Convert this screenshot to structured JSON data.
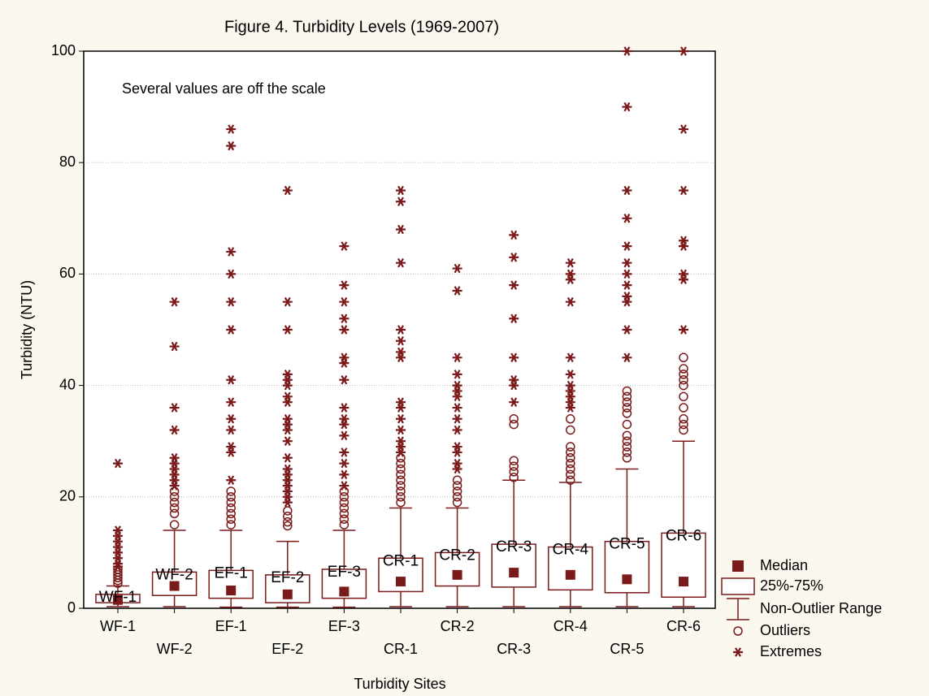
{
  "chart_data": {
    "type": "box",
    "title": "Figure 4.  Turbidity Levels (1969-2007)",
    "annotation": "Several values are off the scale",
    "xlabel": "Turbidity Sites",
    "ylabel": "Turbidity (NTU)",
    "color": "#7b1a1a",
    "annotation_color": "#1a1aff",
    "categories": [
      "WF-1",
      "WF-2",
      "EF-1",
      "EF-2",
      "EF-3",
      "CR-1",
      "CR-2",
      "CR-3",
      "CR-4",
      "CR-5",
      "CR-6"
    ],
    "ylim": [
      0,
      100
    ],
    "yticks": [
      0,
      20,
      40,
      60,
      80,
      100
    ],
    "grid": true,
    "legend": [
      "Median",
      "25%-75%",
      "Non-Outlier Range",
      "Outliers",
      "Extremes"
    ],
    "boxes": [
      {
        "median": 1.5,
        "q1": 1,
        "q3": 2.5,
        "whisker_low": 0.3,
        "whisker_high": 4,
        "outliers": [
          4.5,
          5,
          5.5,
          6,
          6.5,
          7
        ],
        "extremes": [
          7.5,
          8,
          9,
          10,
          11,
          12,
          13,
          14,
          26
        ]
      },
      {
        "median": 4,
        "q1": 2.3,
        "q3": 6.5,
        "whisker_low": 0.3,
        "whisker_high": 14,
        "outliers": [
          15,
          17,
          18,
          19,
          20,
          21
        ],
        "extremes": [
          22,
          23,
          24,
          25,
          26,
          27,
          32,
          36,
          47,
          55
        ]
      },
      {
        "median": 3.2,
        "q1": 1.8,
        "q3": 6.8,
        "whisker_low": 0.2,
        "whisker_high": 14,
        "outliers": [
          15,
          16,
          17,
          18,
          19,
          20,
          21
        ],
        "extremes": [
          23,
          28,
          29,
          32,
          34,
          37,
          41,
          50,
          55,
          60,
          64,
          83,
          86
        ]
      },
      {
        "median": 2.5,
        "q1": 1,
        "q3": 6,
        "whisker_low": 0.2,
        "whisker_high": 12,
        "outliers": [
          14.8,
          15.5,
          16.5,
          17.5
        ],
        "extremes": [
          19,
          20,
          21,
          22,
          23,
          24,
          25,
          27,
          30,
          32,
          33,
          34,
          37,
          38,
          40,
          41,
          42,
          50,
          55,
          75
        ]
      },
      {
        "median": 3,
        "q1": 1.8,
        "q3": 7,
        "whisker_low": 0.2,
        "whisker_high": 14,
        "outliers": [
          15,
          16,
          17,
          18,
          19,
          20,
          21
        ],
        "extremes": [
          22,
          24,
          26,
          28,
          31,
          33,
          34,
          36,
          41,
          44,
          45,
          50,
          52,
          55,
          58,
          65
        ]
      },
      {
        "median": 4.8,
        "q1": 3,
        "q3": 9,
        "whisker_low": 0.3,
        "whisker_high": 18,
        "outliers": [
          19,
          20,
          21,
          22,
          23,
          24,
          25,
          26,
          27
        ],
        "extremes": [
          28,
          29,
          30,
          32,
          34,
          36,
          37,
          45,
          46,
          48,
          50,
          62,
          68,
          73,
          75
        ]
      },
      {
        "median": 6,
        "q1": 4,
        "q3": 10,
        "whisker_low": 0.3,
        "whisker_high": 18,
        "outliers": [
          19,
          20,
          21,
          22,
          23
        ],
        "extremes": [
          25,
          26,
          28,
          29,
          32,
          34,
          36,
          38,
          39,
          40,
          42,
          45,
          57,
          61
        ]
      },
      {
        "median": 6.4,
        "q1": 3.8,
        "q3": 11.5,
        "whisker_low": 0.3,
        "whisker_high": 23,
        "outliers": [
          23.5,
          24.5,
          25.5,
          26.5,
          33,
          34
        ],
        "extremes": [
          37,
          40,
          41,
          45,
          52,
          58,
          63,
          67
        ]
      },
      {
        "median": 6,
        "q1": 3.3,
        "q3": 11,
        "whisker_low": 0.3,
        "whisker_high": 22.6,
        "outliers": [
          23,
          24,
          25,
          26,
          27,
          28,
          29,
          32,
          34
        ],
        "extremes": [
          36,
          37,
          38,
          39,
          40,
          42,
          45,
          55,
          59,
          60,
          62
        ]
      },
      {
        "median": 5.2,
        "q1": 2.8,
        "q3": 12,
        "whisker_low": 0.3,
        "whisker_high": 25,
        "outliers": [
          27,
          28,
          29,
          30,
          31,
          33,
          35,
          36,
          37,
          38,
          39
        ],
        "extremes": [
          45,
          50,
          55,
          56,
          58,
          60,
          62,
          65,
          70,
          75,
          90,
          100
        ]
      },
      {
        "median": 4.8,
        "q1": 2,
        "q3": 13.5,
        "whisker_low": 0.3,
        "whisker_high": 30,
        "outliers": [
          32,
          33,
          34,
          36,
          38,
          40,
          41,
          42,
          43,
          45
        ],
        "extremes": [
          50,
          59,
          60,
          65,
          66,
          75,
          86,
          100
        ]
      }
    ]
  }
}
